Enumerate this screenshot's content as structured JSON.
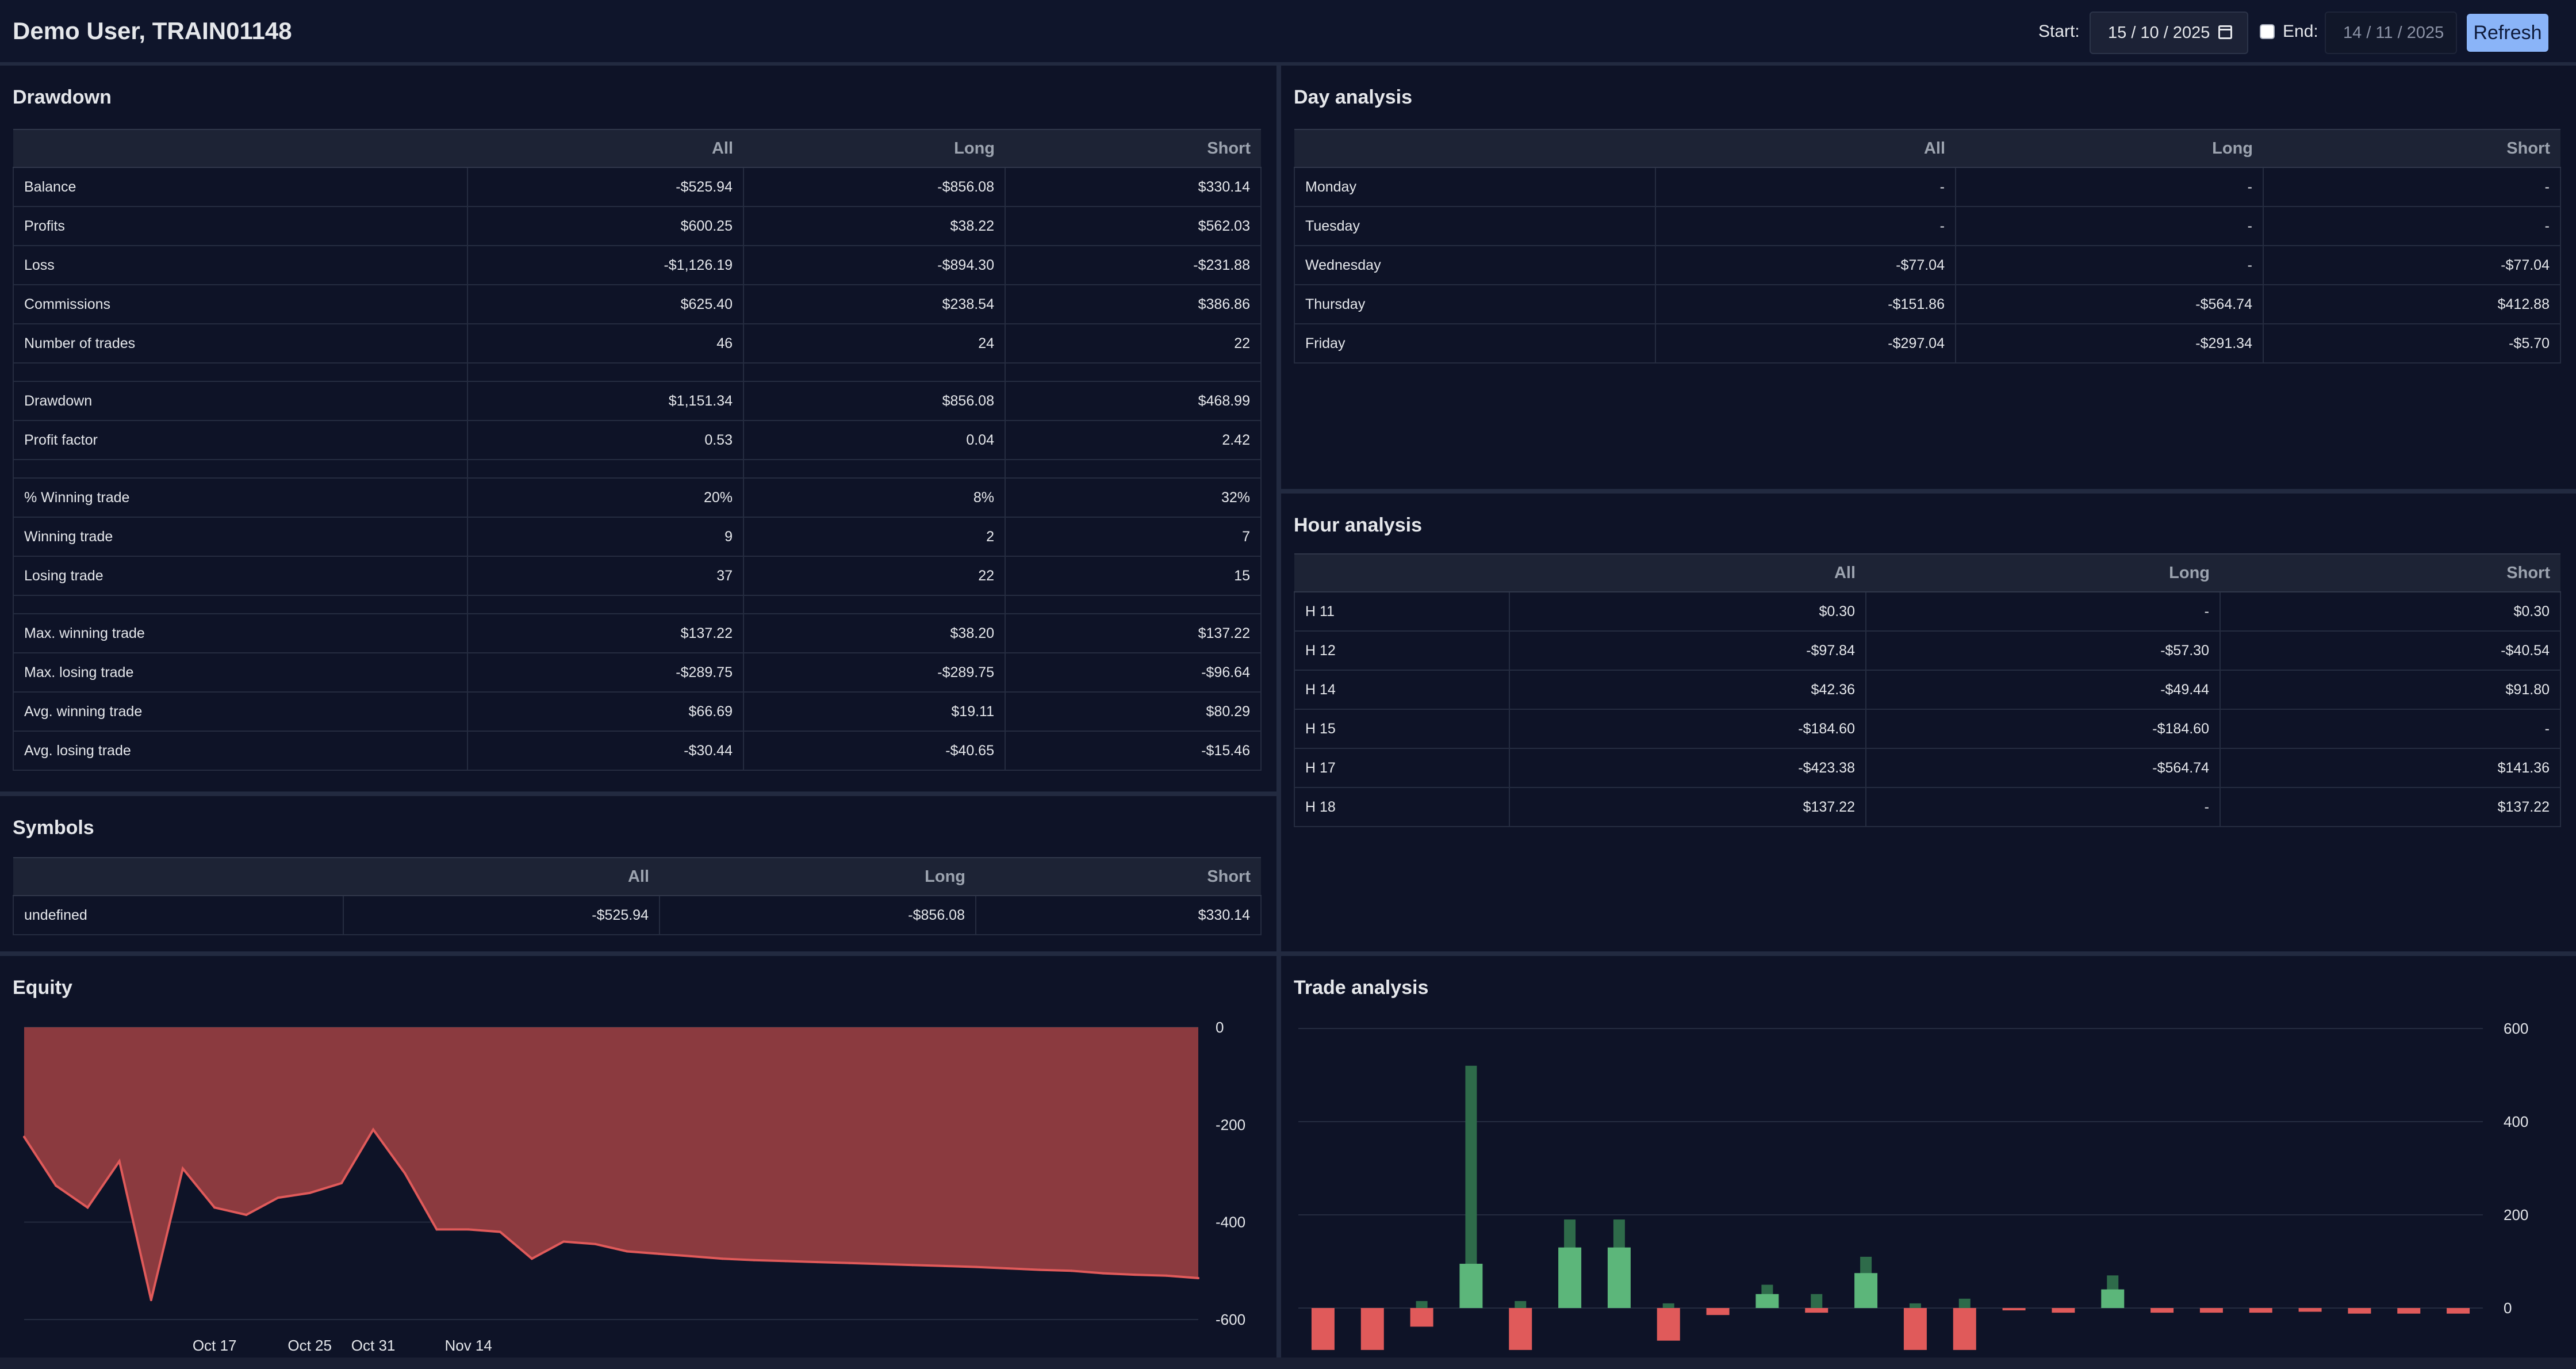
{
  "header": {
    "user": "Demo User, TRAIN01148",
    "start_label": "Start:",
    "start_date": "15 / 10 / 2025",
    "end_label": "End:",
    "end_date": "14 / 11 / 2025",
    "refresh_label": "Refresh"
  },
  "drawdown": {
    "title": "Drawdown",
    "columns": [
      "All",
      "Long",
      "Short"
    ],
    "rows": [
      {
        "label": "Balance",
        "all": "-$525.94",
        "long": "-$856.08",
        "short": "$330.14",
        "c": [
          "neg",
          "neg",
          "pos"
        ]
      },
      {
        "label": "Profits",
        "all": "$600.25",
        "long": "$38.22",
        "short": "$562.03",
        "c": [
          "pos",
          "pos",
          "pos"
        ]
      },
      {
        "label": "Loss",
        "all": "-$1,126.19",
        "long": "-$894.30",
        "short": "-$231.88",
        "c": [
          "neg",
          "neg",
          "neg"
        ]
      },
      {
        "label": "Commissions",
        "all": "$625.40",
        "long": "$238.54",
        "short": "$386.86",
        "c": [
          "neg",
          "neg",
          "neg"
        ]
      },
      {
        "label": "Number of trades",
        "all": "46",
        "long": "24",
        "short": "22",
        "c": [
          "pos",
          "pos",
          "pos"
        ]
      },
      {
        "spacer": true
      },
      {
        "label": "Drawdown",
        "all": "$1,151.34",
        "long": "$856.08",
        "short": "$468.99",
        "c": [
          "neg",
          "neg",
          "neg"
        ]
      },
      {
        "label": "Profit factor",
        "all": "0.53",
        "long": "0.04",
        "short": "2.42",
        "c": [
          "pos",
          "pos",
          "pos"
        ]
      },
      {
        "spacer": true
      },
      {
        "label": "% Winning trade",
        "all": "20%",
        "long": "8%",
        "short": "32%",
        "c": [
          "neg",
          "neg",
          "pos"
        ]
      },
      {
        "label": "Winning trade",
        "all": "9",
        "long": "2",
        "short": "7",
        "c": [
          "pos",
          "pos",
          "pos"
        ]
      },
      {
        "label": "Losing trade",
        "all": "37",
        "long": "22",
        "short": "15",
        "c": [
          "neg",
          "neg",
          "neg"
        ]
      },
      {
        "spacer": true
      },
      {
        "label": "Max. winning trade",
        "all": "$137.22",
        "long": "$38.20",
        "short": "$137.22",
        "c": [
          "pos",
          "pos",
          "pos"
        ]
      },
      {
        "label": "Max. losing trade",
        "all": "-$289.75",
        "long": "-$289.75",
        "short": "-$96.64",
        "c": [
          "neg",
          "neg",
          "neg"
        ]
      },
      {
        "label": "Avg. winning trade",
        "all": "$66.69",
        "long": "$19.11",
        "short": "$80.29",
        "c": [
          "pos",
          "pos",
          "pos"
        ]
      },
      {
        "label": "Avg. losing trade",
        "all": "-$30.44",
        "long": "-$40.65",
        "short": "-$15.46",
        "c": [
          "neg",
          "neg",
          "neg"
        ]
      }
    ]
  },
  "symbols": {
    "title": "Symbols",
    "columns": [
      "All",
      "Long",
      "Short"
    ],
    "rows": [
      {
        "label": "undefined",
        "all": "-$525.94",
        "long": "-$856.08",
        "short": "$330.14",
        "c": [
          "neg",
          "neg",
          "pos"
        ]
      }
    ]
  },
  "day_analysis": {
    "title": "Day analysis",
    "columns": [
      "All",
      "Long",
      "Short"
    ],
    "rows": [
      {
        "label": "Monday",
        "all": "-",
        "long": "-",
        "short": "-",
        "c": [
          "neu",
          "neu",
          "neu"
        ]
      },
      {
        "label": "Tuesday",
        "all": "-",
        "long": "-",
        "short": "-",
        "c": [
          "neu",
          "neu",
          "neu"
        ]
      },
      {
        "label": "Wednesday",
        "all": "-$77.04",
        "long": "-",
        "short": "-$77.04",
        "c": [
          "neg",
          "neu",
          "neg"
        ]
      },
      {
        "label": "Thursday",
        "all": "-$151.86",
        "long": "-$564.74",
        "short": "$412.88",
        "c": [
          "neg",
          "neg",
          "pos"
        ]
      },
      {
        "label": "Friday",
        "all": "-$297.04",
        "long": "-$291.34",
        "short": "-$5.70",
        "c": [
          "neg",
          "neg",
          "neg"
        ]
      }
    ]
  },
  "hour_analysis": {
    "title": "Hour analysis",
    "columns": [
      "All",
      "Long",
      "Short"
    ],
    "rows": [
      {
        "label": "H 11",
        "all": "$0.30",
        "long": "-",
        "short": "$0.30",
        "c": [
          "pos",
          "neu",
          "pos"
        ]
      },
      {
        "label": "H 12",
        "all": "-$97.84",
        "long": "-$57.30",
        "short": "-$40.54",
        "c": [
          "neg",
          "neg",
          "neg"
        ]
      },
      {
        "label": "H 14",
        "all": "$42.36",
        "long": "-$49.44",
        "short": "$91.80",
        "c": [
          "pos",
          "neg",
          "pos"
        ]
      },
      {
        "label": "H 15",
        "all": "-$184.60",
        "long": "-$184.60",
        "short": "-",
        "c": [
          "neg",
          "neg",
          "neu"
        ]
      },
      {
        "label": "H 17",
        "all": "-$423.38",
        "long": "-$564.74",
        "short": "$141.36",
        "c": [
          "neg",
          "neg",
          "pos"
        ]
      },
      {
        "label": "H 18",
        "all": "$137.22",
        "long": "-",
        "short": "$137.22",
        "c": [
          "pos",
          "neu",
          "pos"
        ]
      }
    ]
  },
  "equity": {
    "title": "Equity",
    "chart_data": {
      "type": "area",
      "ylim": [
        -600,
        0
      ],
      "yticks": [
        0,
        -200,
        -400,
        -600
      ],
      "xticks": [
        {
          "label": "Oct 17",
          "i": 6
        },
        {
          "label": "Oct 25",
          "i": 9
        },
        {
          "label": "Oct 31",
          "i": 11
        },
        {
          "label": "Nov 14",
          "i": 14
        }
      ],
      "values": [
        -225,
        -325,
        -370,
        -275,
        -560,
        -290,
        -370,
        -385,
        -350,
        -340,
        -320,
        -210,
        -300,
        -415,
        -415,
        -420,
        -475,
        -440,
        -445,
        -460,
        -465,
        -470,
        -475,
        -478,
        -480,
        -482,
        -484,
        -486,
        -488,
        -490,
        -492,
        -495,
        -498,
        -500,
        -505,
        -508,
        -510,
        -515
      ],
      "fill": "#8b3a3f",
      "line": "#e05a5a"
    }
  },
  "trade_analysis": {
    "title": "Trade analysis",
    "chart_data": {
      "type": "bar",
      "ylim": [
        -100,
        620
      ],
      "yticks": [
        600,
        400,
        200,
        0
      ],
      "bars": [
        {
          "v": -90,
          "hi": null
        },
        {
          "v": -90,
          "hi": null
        },
        {
          "v": -40,
          "hi": 15
        },
        {
          "v": 95,
          "hi": 520
        },
        {
          "v": -90,
          "hi": 15
        },
        {
          "v": 130,
          "hi": 190
        },
        {
          "v": 130,
          "hi": 190
        },
        {
          "v": -70,
          "hi": 10
        },
        {
          "v": -15,
          "hi": null
        },
        {
          "v": 30,
          "hi": 50
        },
        {
          "v": -10,
          "hi": 30
        },
        {
          "v": 75,
          "hi": 110
        },
        {
          "v": -90,
          "hi": 10
        },
        {
          "v": -90,
          "hi": 20
        },
        {
          "v": -5,
          "hi": null
        },
        {
          "v": -10,
          "hi": null
        },
        {
          "v": 40,
          "hi": 70
        },
        {
          "v": -10,
          "hi": null
        },
        {
          "v": -10,
          "hi": null
        },
        {
          "v": -10,
          "hi": null
        },
        {
          "v": -8,
          "hi": null
        },
        {
          "v": -12,
          "hi": null
        },
        {
          "v": -12,
          "hi": null
        },
        {
          "v": -12,
          "hi": null
        }
      ],
      "pos_color": "#5cb67a",
      "pos_dark": "#2e6b4a",
      "neg_color": "#e05a5a",
      "neg_dark": "#8b3a3f"
    }
  }
}
